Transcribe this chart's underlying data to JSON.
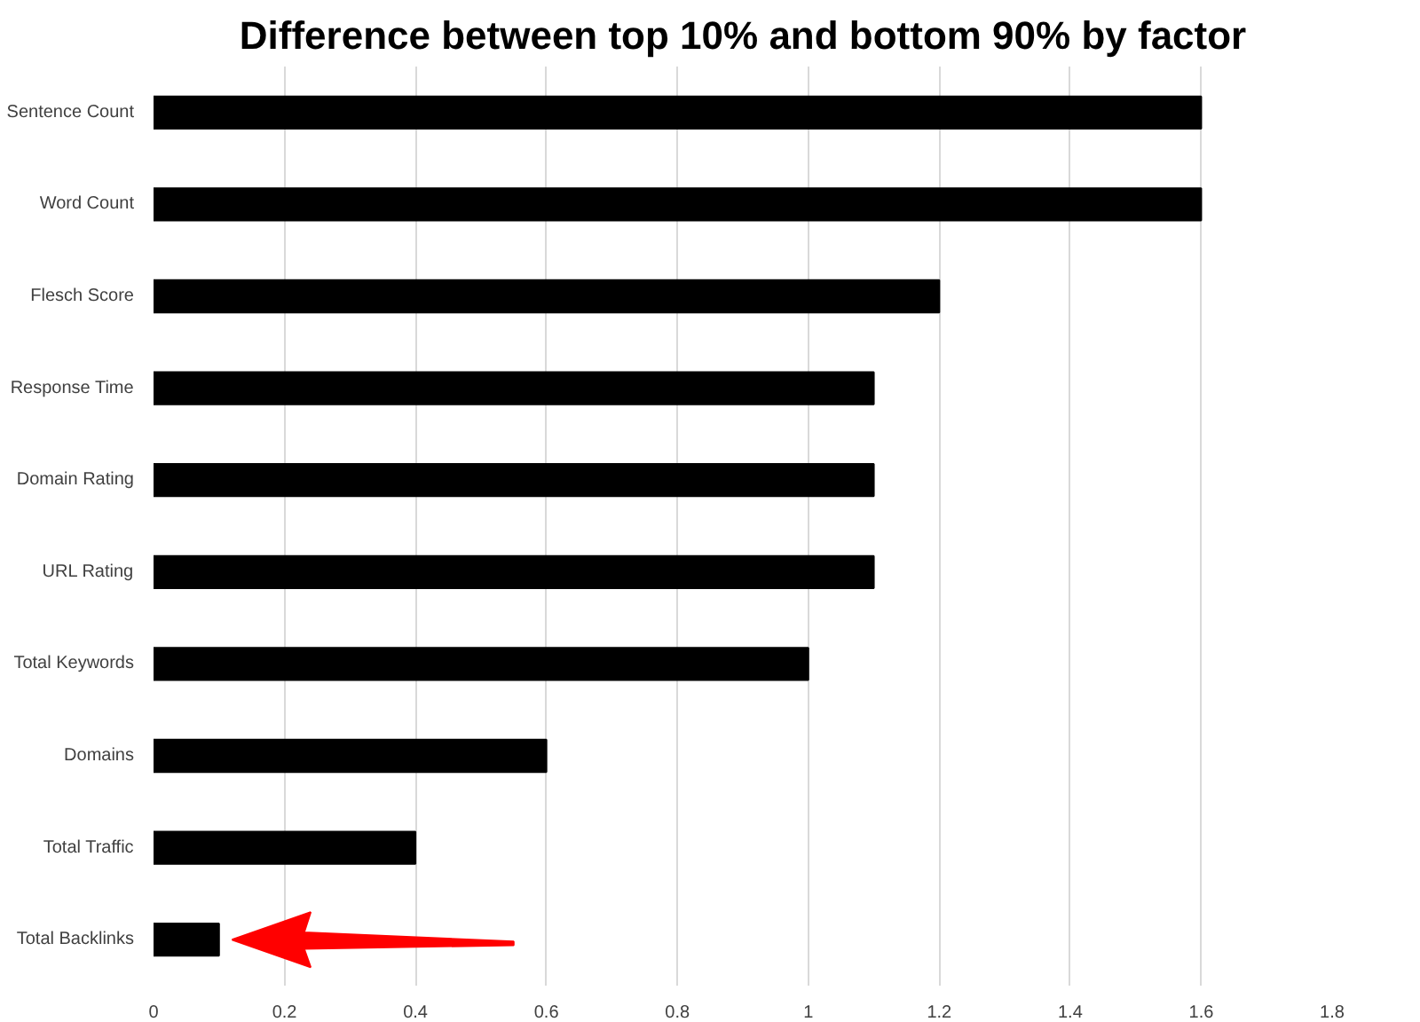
{
  "chart_data": {
    "type": "bar",
    "orientation": "horizontal",
    "title": "Difference between top 10% and bottom 90% by factor",
    "categories": [
      "Sentence Count",
      "Word Count",
      "Flesch Score",
      "Response Time",
      "Domain Rating",
      "URL Rating",
      "Total Keywords",
      "Domains",
      "Total Traffic",
      "Total Backlinks"
    ],
    "values": [
      1.6,
      1.6,
      1.2,
      1.1,
      1.1,
      1.1,
      1.0,
      0.6,
      0.4,
      0.1
    ],
    "color": "#000000",
    "xlim": [
      0,
      1.8
    ],
    "xticks": [
      0,
      {
        "value": 0.2,
        "label": "0.2"
      },
      {
        "value": 0.4,
        "label": "0.4"
      },
      {
        "value": 0.6,
        "label": "0.6"
      },
      {
        "value": 0.8,
        "label": "0.8"
      },
      1,
      {
        "value": 1.2,
        "label": "1.2"
      },
      {
        "value": 1.4,
        "label": "1.4"
      },
      {
        "value": 1.6,
        "label": "1.6"
      },
      {
        "value": 1.8,
        "label": "1.8"
      }
    ],
    "grid": "x"
  }
}
